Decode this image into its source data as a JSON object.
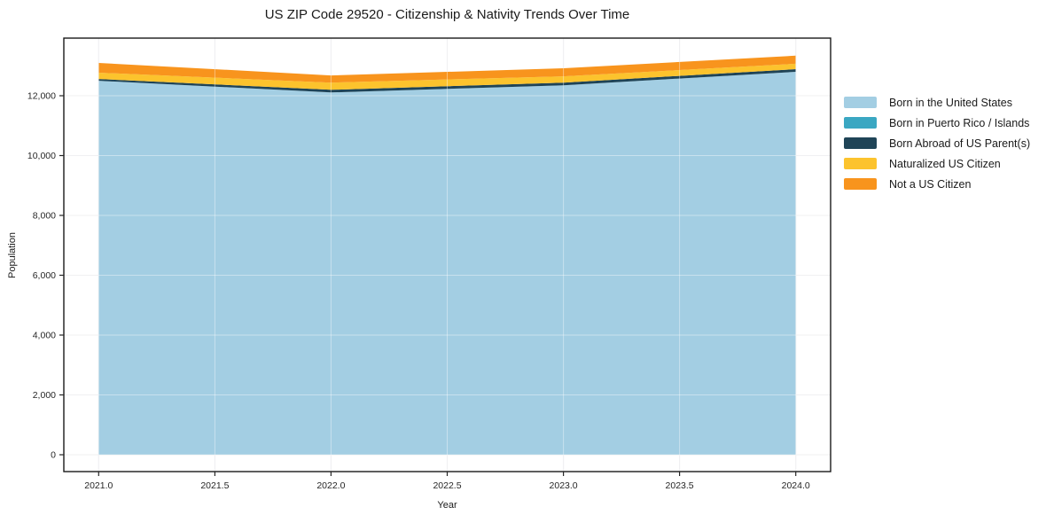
{
  "title": "US ZIP Code 29520 - Citizenship & Nativity Trends Over Time",
  "axis": {
    "xlabel": "Year",
    "ylabel": "Population"
  },
  "chart_data": {
    "type": "area",
    "stacked": true,
    "title": "US ZIP Code 29520 - Citizenship & Nativity Trends Over Time",
    "xlabel": "Year",
    "ylabel": "Population",
    "x": [
      2021,
      2022,
      2023,
      2024
    ],
    "series": [
      {
        "name": "Born in the United States",
        "color": "#a3cee3",
        "values": [
          12500,
          12110,
          12350,
          12800
        ]
      },
      {
        "name": "Born in Puerto Rico / Islands",
        "color": "#3aa7c2",
        "values": [
          0,
          0,
          0,
          0
        ]
      },
      {
        "name": "Born Abroad of US Parent(s)",
        "color": "#1f4457",
        "values": [
          60,
          90,
          90,
          90
        ]
      },
      {
        "name": "Naturalized US Citizen",
        "color": "#fcc32d",
        "values": [
          210,
          240,
          210,
          180
        ]
      },
      {
        "name": "Not a US Citizen",
        "color": "#f8941d",
        "values": [
          325,
          240,
          270,
          270
        ]
      }
    ],
    "totals": [
      13095,
      12680,
      12920,
      13340
    ],
    "xlim": [
      2020.85,
      2024.15
    ],
    "ylim": [
      -563,
      13926
    ],
    "xticks": {
      "values": [
        2021.0,
        2021.5,
        2022.0,
        2022.5,
        2023.0,
        2023.5,
        2024.0
      ],
      "labels": [
        "2021.0",
        "2021.5",
        "2022.0",
        "2022.5",
        "2023.0",
        "2023.5",
        "2024.0"
      ]
    },
    "yticks": {
      "values": [
        0,
        2000,
        4000,
        6000,
        8000,
        10000,
        12000
      ],
      "labels": [
        "0",
        "2,000",
        "4,000",
        "6,000",
        "8,000",
        "10,000",
        "12,000"
      ]
    },
    "grid": true,
    "legend_position": "right-outside"
  },
  "style_colors": {
    "grid_under": "#e6e6e9",
    "grid_over": "rgba(255,255,255,0.4)",
    "spine": "#1a1a1a",
    "tick": "#262626",
    "tick_text": "#262626",
    "background": "#ffffff"
  }
}
